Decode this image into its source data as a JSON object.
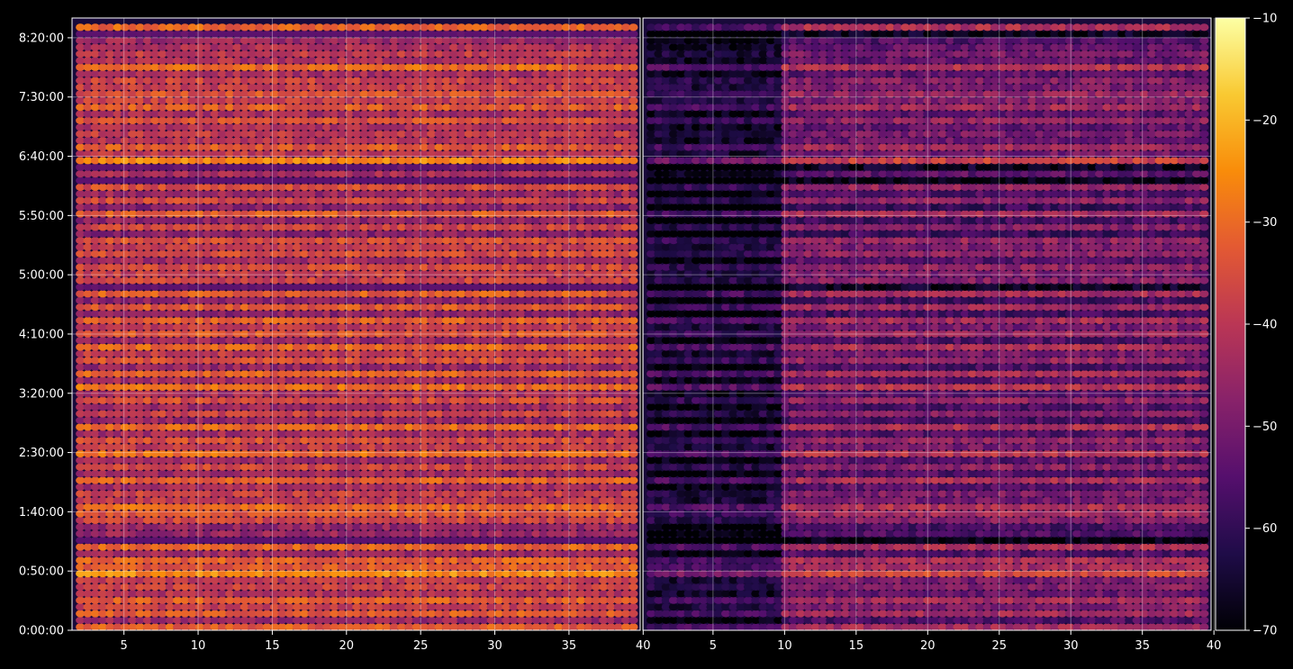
{
  "chart_data": {
    "type": "heatmap",
    "title": "",
    "xlabel": "",
    "ylabel": "",
    "grid": true,
    "background": "#000000",
    "colormap": "inferno",
    "colormap_stops": [
      "#000004",
      "#1f0c48",
      "#550f6d",
      "#88226a",
      "#ba3655",
      "#e35933",
      "#f98c0a",
      "#f9c932",
      "#fcffa4"
    ],
    "panels": [
      {
        "name": "",
        "x_range": [
          1.5,
          39.8
        ],
        "x_ticks": [
          "5",
          "10",
          "15",
          "20",
          "25",
          "30",
          "35",
          "40"
        ],
        "x_tick_values": [
          5,
          10,
          15,
          20,
          25,
          30,
          35,
          40
        ],
        "level_range_db": [
          -48,
          -22
        ],
        "typical_level_db": -34
      },
      {
        "name": "",
        "x_range": [
          0.1,
          39.8
        ],
        "x_ticks": [
          "5",
          "10",
          "15",
          "20",
          "25",
          "30",
          "35",
          "40"
        ],
        "x_tick_values": [
          5,
          10,
          15,
          20,
          25,
          30,
          35,
          40
        ],
        "level_range_db": [
          -68,
          -30
        ],
        "typical_level_db": -45,
        "low_level_columns": [
          0.1,
          10
        ]
      }
    ],
    "y_range_seconds": [
      0,
      31000
    ],
    "y_ticks": [
      "0:00:00",
      "0:50:00",
      "1:40:00",
      "2:30:00",
      "3:20:00",
      "4:10:00",
      "5:00:00",
      "5:50:00",
      "6:40:00",
      "7:30:00",
      "8:20:00"
    ],
    "y_tick_values": [
      0,
      3000,
      6000,
      9000,
      12000,
      15000,
      18000,
      21000,
      24000,
      27000,
      30000
    ],
    "bright_rows": [
      "0:50:00",
      "1:40:00",
      "5:00:00",
      "6:40:00",
      "7:30:00"
    ],
    "dark_rows": [
      "1:20:00",
      "4:55:00",
      "6:30:00",
      "8:25:00"
    ],
    "colorbar": {
      "min": -70,
      "max": -10,
      "ticks": [
        "−70",
        "−60",
        "−50",
        "−40",
        "−30",
        "−20",
        "−10"
      ],
      "tick_values": [
        -70,
        -60,
        -50,
        -40,
        -30,
        -20,
        -10
      ]
    }
  }
}
